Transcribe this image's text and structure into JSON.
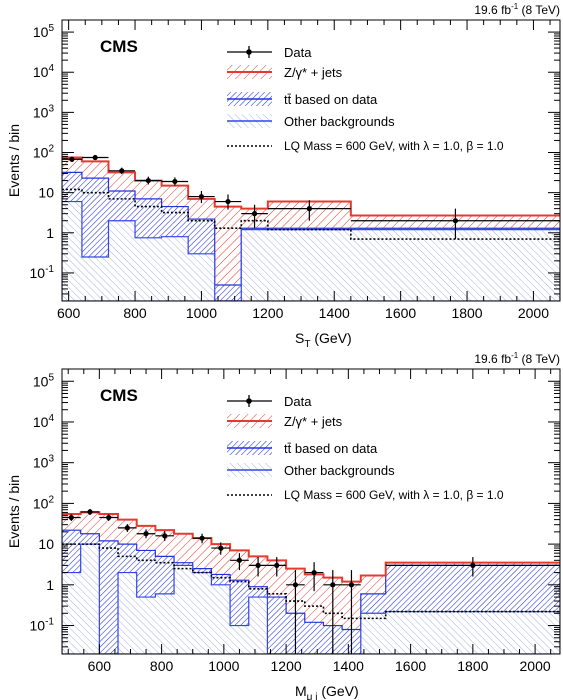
{
  "chart_data": [
    {
      "type": "histogram",
      "lumi": "19.6 fb",
      "lumi_sup": "-1",
      "lumi_energy": " (8 TeV)",
      "experiment": "CMS",
      "ylabel": "Events / bin",
      "xlabel": "S",
      "xlabel_sub": "T",
      "xlabel_unit": " (GeV)",
      "xlim": [
        580,
        2080
      ],
      "ylim": [
        0.02,
        200000
      ],
      "yscale": "log",
      "xticks": [
        600,
        800,
        1000,
        1200,
        1400,
        1600,
        1800,
        2000
      ],
      "yticks": [
        0.1,
        1,
        10,
        100,
        1000,
        10000,
        100000
      ],
      "legend": {
        "position": "top-right",
        "data": "Data",
        "zjets": "Z/γ* + jets",
        "ttbar": "tt̄ based on data",
        "other": "Other backgrounds",
        "lq": "LQ Mass = 600 GeV, with λ = 1.0, β = 1.0"
      },
      "bin_edges": [
        580,
        640,
        720,
        800,
        880,
        960,
        1040,
        1120,
        1200,
        1450,
        2080
      ],
      "stack_total": [
        75,
        60,
        32,
        20,
        15,
        7,
        4.5,
        4,
        6,
        2.7
      ],
      "ttbar_plus_other": [
        32,
        23,
        11,
        7,
        4.5,
        2.2,
        0.05,
        1.3,
        1.3,
        1.3
      ],
      "other": [
        6,
        0.25,
        2,
        0.75,
        0.8,
        0.3,
        0.02,
        1.2,
        1.2,
        1.2
      ],
      "lq": [
        12,
        10,
        7,
        4.5,
        3.2,
        2,
        1.3,
        2,
        1.2,
        0.7
      ],
      "data_points": [
        {
          "x": 610,
          "y": 68,
          "ylo": 58,
          "yhi": 79
        },
        {
          "x": 680,
          "y": 75,
          "ylo": 65,
          "yhi": 86
        },
        {
          "x": 760,
          "y": 35,
          "ylo": 29,
          "yhi": 42
        },
        {
          "x": 840,
          "y": 20,
          "ylo": 16,
          "yhi": 25
        },
        {
          "x": 920,
          "y": 19,
          "ylo": 15,
          "yhi": 24
        },
        {
          "x": 1000,
          "y": 8,
          "ylo": 5.5,
          "yhi": 11
        },
        {
          "x": 1080,
          "y": 6,
          "ylo": 3.8,
          "yhi": 9
        },
        {
          "x": 1160,
          "y": 3,
          "ylo": 1.3,
          "yhi": 5
        },
        {
          "x": 1325,
          "y": 4,
          "ylo": 2,
          "yhi": 6.5
        },
        {
          "x": 1765,
          "y": 2,
          "ylo": 0.7,
          "yhi": 4
        }
      ]
    },
    {
      "type": "histogram",
      "lumi": "19.6 fb",
      "lumi_sup": "-1",
      "lumi_energy": " (8 TeV)",
      "experiment": "CMS",
      "ylabel": "Events / bin",
      "xlabel": "M",
      "xlabel_sub": "μ j",
      "xlabel_unit": " (GeV)",
      "xlim": [
        480,
        2080
      ],
      "ylim": [
        0.02,
        200000
      ],
      "yscale": "log",
      "xticks": [
        600,
        800,
        1000,
        1200,
        1400,
        1600,
        1800,
        2000
      ],
      "yticks": [
        0.1,
        1,
        10,
        100,
        1000,
        10000,
        100000
      ],
      "legend": {
        "position": "top-right",
        "data": "Data",
        "zjets": "Z/γ* + jets",
        "ttbar": "tt̄ based on data",
        "other": "Other backgrounds",
        "lq": "LQ Mass = 600 GeV, with λ = 1.0, β = 1.0"
      },
      "bin_edges": [
        480,
        540,
        600,
        660,
        720,
        780,
        840,
        900,
        960,
        1020,
        1080,
        1140,
        1200,
        1260,
        1320,
        1380,
        1440,
        1520,
        2080
      ],
      "stack_total": [
        55,
        60,
        55,
        40,
        28,
        22,
        18,
        14,
        10,
        7,
        5,
        4,
        2.5,
        1.8,
        1.5,
        1.2,
        1.7,
        3.5
      ],
      "ttbar_plus_other": [
        22,
        18,
        12,
        10,
        7,
        5,
        3.5,
        2.5,
        1.8,
        1.3,
        0.9,
        0.5,
        0.2,
        0.12,
        0.1,
        0.08,
        0.6,
        3
      ],
      "other": [
        2,
        10,
        0.02,
        2,
        0.5,
        0.6,
        3,
        2,
        1,
        0.1,
        0.5,
        0.02,
        0.02,
        0.02,
        0.02,
        0.02,
        0.2,
        0.22
      ],
      "lq": [
        10,
        10,
        8,
        5,
        4,
        3.5,
        2.5,
        2,
        1.5,
        1.2,
        0.8,
        0.6,
        0.4,
        0.3,
        0.2,
        0.15,
        0.15,
        0.22
      ],
      "data_points": [
        {
          "x": 510,
          "y": 45,
          "ylo": 37,
          "yhi": 54
        },
        {
          "x": 570,
          "y": 62,
          "ylo": 52,
          "yhi": 73
        },
        {
          "x": 630,
          "y": 45,
          "ylo": 37,
          "yhi": 54
        },
        {
          "x": 690,
          "y": 25,
          "ylo": 20,
          "yhi": 31
        },
        {
          "x": 750,
          "y": 18,
          "ylo": 14,
          "yhi": 23
        },
        {
          "x": 810,
          "y": 16,
          "ylo": 12,
          "yhi": 21
        },
        {
          "x": 930,
          "y": 14,
          "ylo": 10.5,
          "yhi": 18
        },
        {
          "x": 990,
          "y": 8,
          "ylo": 5.5,
          "yhi": 11
        },
        {
          "x": 1050,
          "y": 4,
          "ylo": 2.3,
          "yhi": 6
        },
        {
          "x": 1110,
          "y": 3,
          "ylo": 1.6,
          "yhi": 4.8
        },
        {
          "x": 1170,
          "y": 3,
          "ylo": 1.6,
          "yhi": 4.8
        },
        {
          "x": 1230,
          "y": 1,
          "ylo": 0.02,
          "yhi": 2.3
        },
        {
          "x": 1290,
          "y": 2,
          "ylo": 0.7,
          "yhi": 3.6
        },
        {
          "x": 1350,
          "y": 1,
          "ylo": 0.02,
          "yhi": 2.3
        },
        {
          "x": 1410,
          "y": 1,
          "ylo": 0.02,
          "yhi": 2.3
        },
        {
          "x": 1800,
          "y": 3,
          "ylo": 1.6,
          "yhi": 4.8
        }
      ]
    }
  ]
}
